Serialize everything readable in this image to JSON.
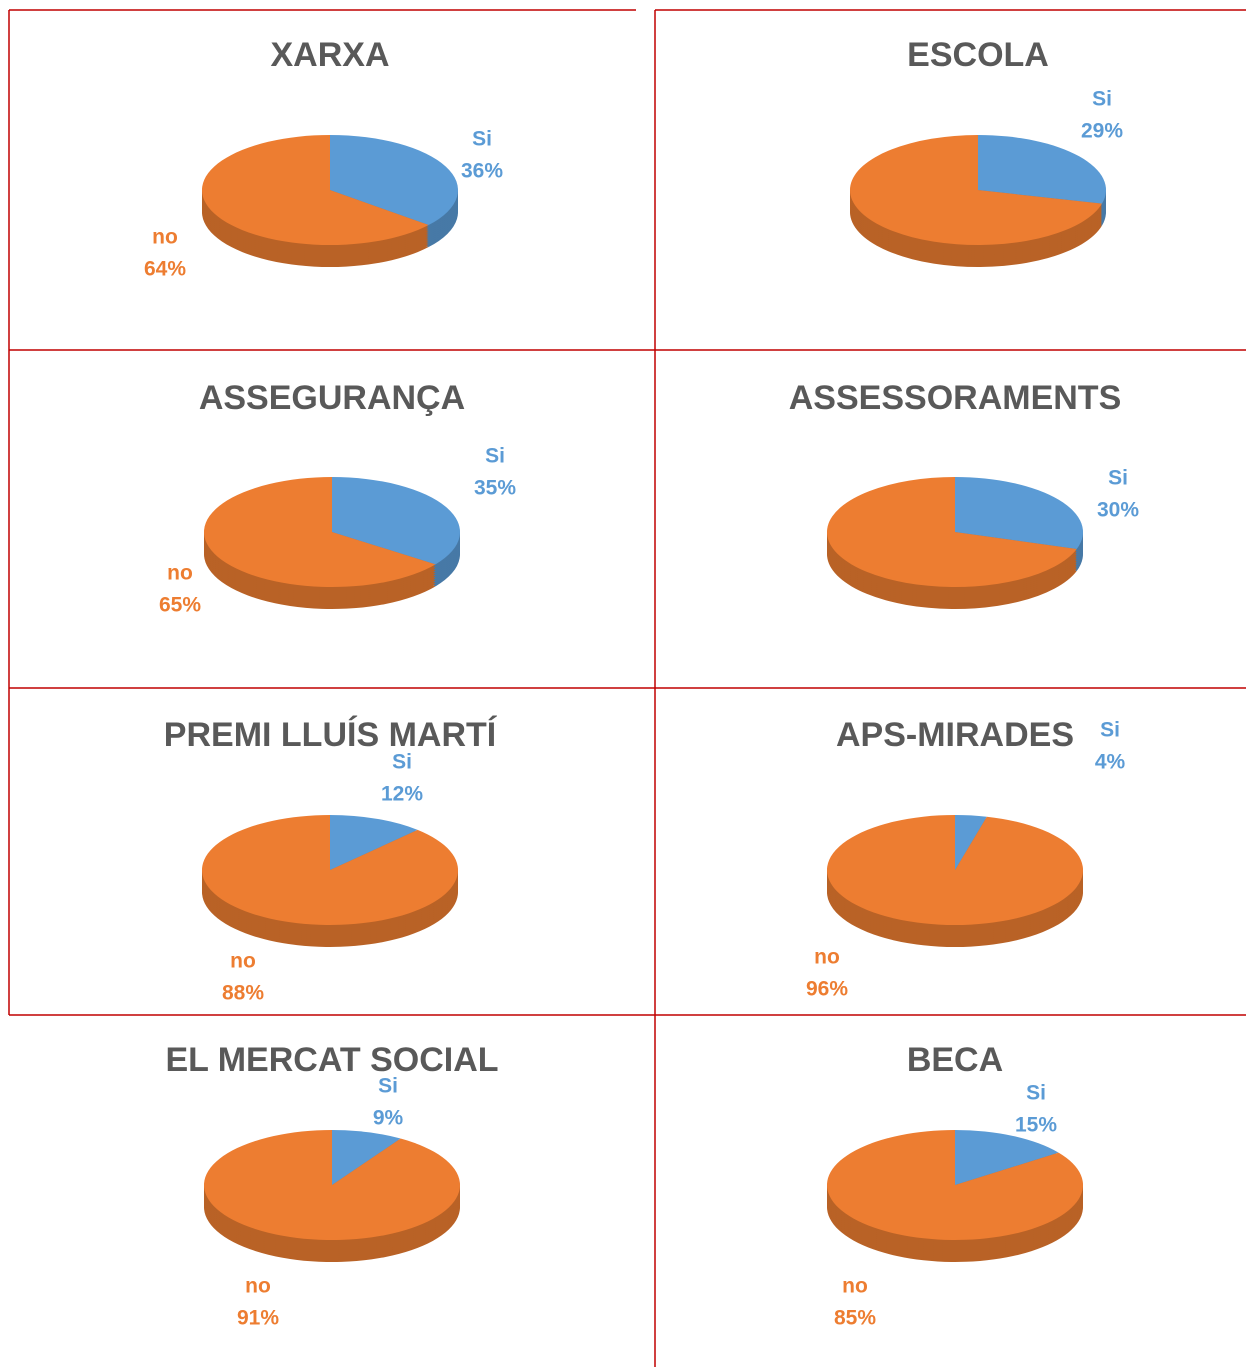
{
  "chart_data": [
    {
      "type": "pie",
      "title": "XARXA",
      "categories": [
        "Si",
        "no"
      ],
      "values": [
        36,
        64
      ],
      "value_labels": [
        "36%",
        "64%"
      ],
      "colors": [
        "#5b9bd5",
        "#ed7d31"
      ]
    },
    {
      "type": "pie",
      "title": "ESCOLA",
      "categories": [
        "Si",
        null
      ],
      "values": [
        29,
        71
      ],
      "value_labels": [
        "29%",
        null
      ],
      "colors": [
        "#5b9bd5",
        "#ed7d31"
      ]
    },
    {
      "type": "pie",
      "title": "ASSEGURANÇA",
      "categories": [
        "Si",
        "no"
      ],
      "values": [
        35,
        65
      ],
      "value_labels": [
        "35%",
        "65%"
      ],
      "colors": [
        "#5b9bd5",
        "#ed7d31"
      ]
    },
    {
      "type": "pie",
      "title": "ASSESSORAMENTS",
      "categories": [
        "Si",
        null
      ],
      "values": [
        30,
        70
      ],
      "value_labels": [
        "30%",
        null
      ],
      "colors": [
        "#5b9bd5",
        "#ed7d31"
      ]
    },
    {
      "type": "pie",
      "title": "PREMI LLUÍS MARTÍ",
      "categories": [
        "Si",
        "no"
      ],
      "values": [
        12,
        88
      ],
      "value_labels": [
        "12%",
        "88%"
      ],
      "colors": [
        "#5b9bd5",
        "#ed7d31"
      ]
    },
    {
      "type": "pie",
      "title": "APS-MIRADES",
      "categories": [
        "Si",
        "no"
      ],
      "values": [
        4,
        96
      ],
      "value_labels": [
        "4%",
        "96%"
      ],
      "colors": [
        "#5b9bd5",
        "#ed7d31"
      ]
    },
    {
      "type": "pie",
      "title": "EL MERCAT SOCIAL",
      "categories": [
        "Si",
        "no"
      ],
      "values": [
        9,
        91
      ],
      "value_labels": [
        "9%",
        "91%"
      ],
      "colors": [
        "#5b9bd5",
        "#ed7d31"
      ]
    },
    {
      "type": "pie",
      "title": "BECA",
      "categories": [
        "Si",
        "no"
      ],
      "values": [
        15,
        85
      ],
      "value_labels": [
        "15%",
        "85%"
      ],
      "colors": [
        "#5b9bd5",
        "#ed7d31"
      ]
    }
  ]
}
